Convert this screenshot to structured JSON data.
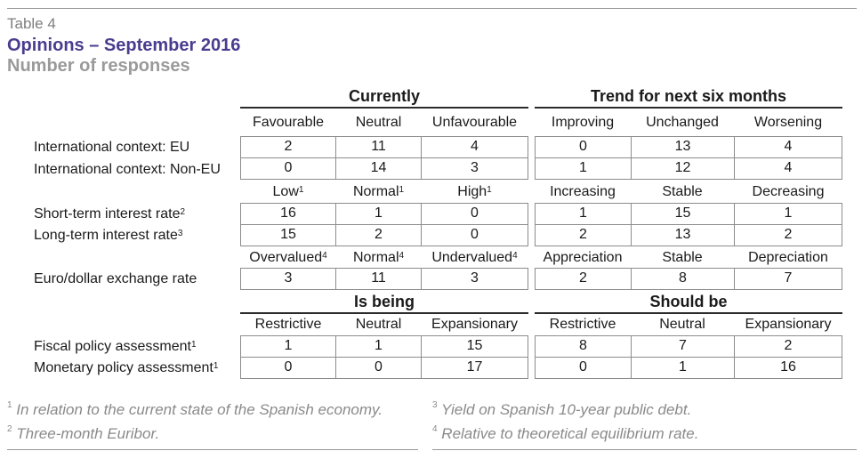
{
  "header": {
    "table_label": "Table 4",
    "title": "Opinions – September 2016",
    "subtitle": "Number of responses"
  },
  "groups": {
    "currently": "Currently",
    "trend": "Trend for next six months",
    "is_being": "Is being",
    "should_be": "Should be"
  },
  "sections": [
    {
      "columns": [
        "Favourable",
        "Neutral",
        "Unfavourable",
        "Improving",
        "Unchanged",
        "Worsening"
      ],
      "column_sups": [
        "",
        "",
        "",
        "",
        "",
        ""
      ],
      "rows": [
        {
          "label": "International context: EU",
          "sup": "",
          "values": [
            "2",
            "11",
            "4",
            "0",
            "13",
            "4"
          ]
        },
        {
          "label": "International context: Non-EU",
          "sup": "",
          "values": [
            "0",
            "14",
            "3",
            "1",
            "12",
            "4"
          ]
        }
      ]
    },
    {
      "columns": [
        "Low",
        "Normal",
        "High",
        "Increasing",
        "Stable",
        "Decreasing"
      ],
      "column_sups": [
        "1",
        "1",
        "1",
        "",
        "",
        ""
      ],
      "rows": [
        {
          "label": "Short-term interest rate",
          "sup": "2",
          "values": [
            "16",
            "1",
            "0",
            "1",
            "15",
            "1"
          ]
        },
        {
          "label": "Long-term interest rate",
          "sup": "3",
          "values": [
            "15",
            "2",
            "0",
            "2",
            "13",
            "2"
          ]
        }
      ]
    },
    {
      "columns": [
        "Overvalued",
        "Normal",
        "Undervalued",
        "Appreciation",
        "Stable",
        "Depreciation"
      ],
      "column_sups": [
        "4",
        "4",
        "4",
        "",
        "",
        ""
      ],
      "rows": [
        {
          "label": "Euro/dollar exchange rate",
          "sup": "",
          "values": [
            "3",
            "11",
            "3",
            "2",
            "8",
            "7"
          ]
        }
      ]
    },
    {
      "columns": [
        "Restrictive",
        "Neutral",
        "Expansionary",
        "Restrictive",
        "Neutral",
        "Expansionary"
      ],
      "column_sups": [
        "",
        "",
        "",
        "",
        "",
        ""
      ],
      "rows": [
        {
          "label": "Fiscal policy assessment",
          "sup": "1",
          "values": [
            "1",
            "1",
            "15",
            "8",
            "7",
            "2"
          ]
        },
        {
          "label": "Monetary policy assessment",
          "sup": "1",
          "values": [
            "0",
            "0",
            "17",
            "0",
            "1",
            "16"
          ]
        }
      ]
    }
  ],
  "footnotes": [
    {
      "num": "1",
      "text": " In relation to the current state of the Spanish economy."
    },
    {
      "num": "2",
      "text": " Three-month Euribor."
    },
    {
      "num": "3",
      "text": " Yield on Spanish 10-year public debt."
    },
    {
      "num": "4",
      "text": " Relative to theoretical equilibrium rate."
    }
  ]
}
